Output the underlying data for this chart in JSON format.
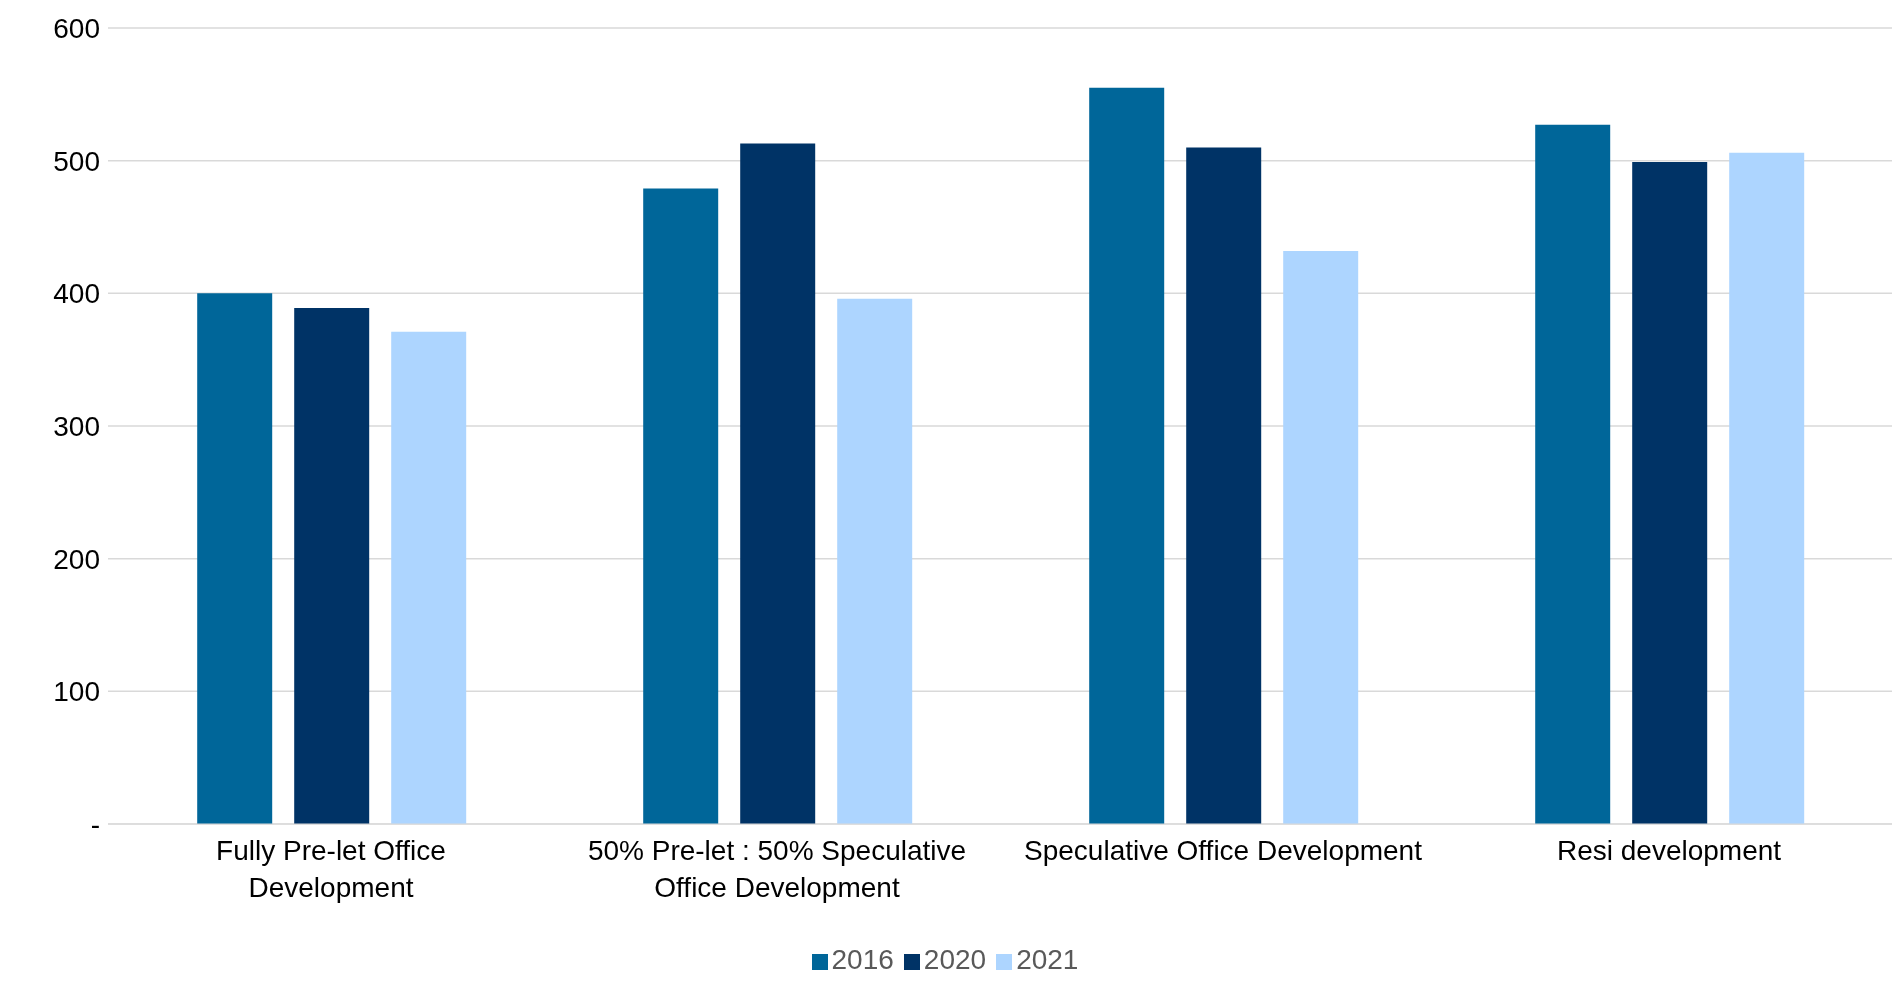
{
  "chart_data": {
    "type": "bar",
    "categories": [
      "Fully Pre-let Office Development",
      "50% Pre-let : 50% Speculative Office Development",
      "Speculative Office Development",
      "Resi development"
    ],
    "series": [
      {
        "name": "2016",
        "color": "#006699",
        "values": [
          400,
          479,
          555,
          527
        ]
      },
      {
        "name": "2020",
        "color": "#003366",
        "values": [
          389,
          513,
          510,
          499
        ]
      },
      {
        "name": "2021",
        "color": "#add5ff",
        "values": [
          371,
          396,
          432,
          506
        ]
      }
    ],
    "ylim": [
      0,
      600
    ],
    "yticks": [
      {
        "value": 0,
        "label": "-"
      },
      100,
      200,
      300,
      400,
      500,
      600
    ],
    "grid": "y",
    "legend": "bottom"
  }
}
